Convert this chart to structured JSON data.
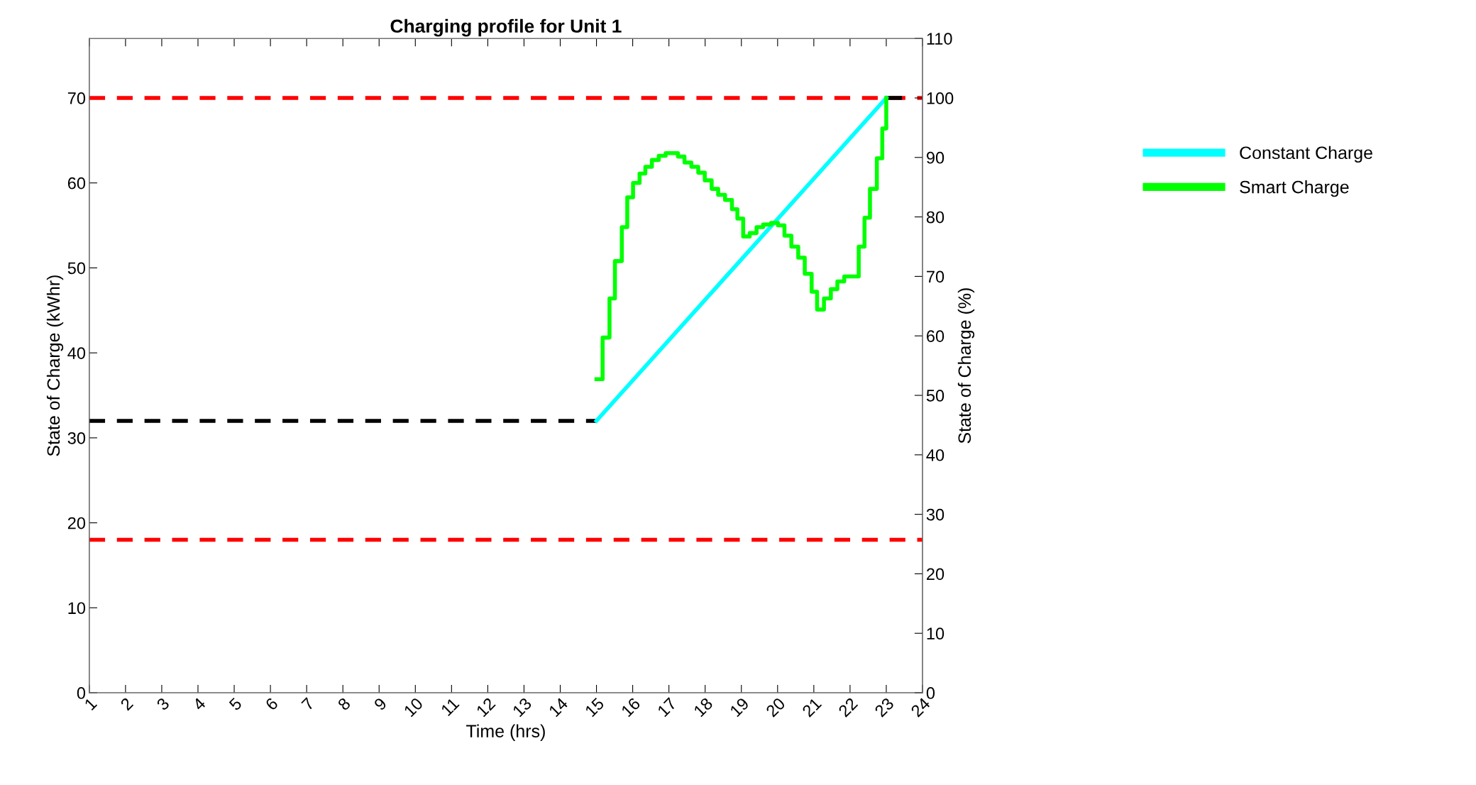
{
  "chart_data": {
    "type": "line",
    "title": "Charging profile for Unit 1",
    "xlabel": "Time (hrs)",
    "ylabel": "State of Charge (kWhr)",
    "y2label": "State of Charge (%)",
    "xlim": [
      1,
      24
    ],
    "xticks": [
      1,
      2,
      3,
      4,
      5,
      6,
      7,
      8,
      9,
      10,
      11,
      12,
      13,
      14,
      15,
      16,
      17,
      18,
      19,
      20,
      21,
      22,
      23,
      24
    ],
    "ylim": [
      0,
      77
    ],
    "yticks": [
      0,
      10,
      20,
      30,
      40,
      50,
      60,
      70
    ],
    "y2lim": [
      0,
      110
    ],
    "y2ticks": [
      0,
      10,
      20,
      30,
      40,
      50,
      60,
      70,
      80,
      90,
      100,
      110
    ],
    "grid": false,
    "legend": "top right",
    "line_style": "solid",
    "marker": "none",
    "ref_lines": [
      {
        "axis": "y",
        "value": 70,
        "color": "#ff0000",
        "line_style": "dashed"
      },
      {
        "axis": "y",
        "value": 18,
        "color": "#ff0000",
        "line_style": "dashed"
      }
    ],
    "series": [
      {
        "color": "#000000",
        "line_style": "dashed",
        "x": [
          1,
          15,
          19,
          23,
          23.5
        ],
        "values": [
          32,
          32,
          null,
          70,
          70
        ]
      },
      {
        "name": "Constant Charge",
        "color": "#00ffff",
        "x": [
          15,
          23
        ],
        "values": [
          32,
          70
        ]
      },
      {
        "name": "Smart Charge",
        "color": "#00ff00",
        "type": "step",
        "x": [
          15.0,
          15.17,
          15.36,
          15.51,
          15.7,
          15.85,
          16.01,
          16.19,
          16.35,
          16.53,
          16.72,
          16.91,
          17.25,
          17.43,
          17.62,
          17.81,
          17.99,
          18.18,
          18.36,
          18.55,
          18.74,
          18.89,
          19.05,
          19.23,
          19.42,
          19.6,
          19.82,
          20.01,
          20.19,
          20.38,
          20.57,
          20.75,
          20.94,
          21.09,
          21.28,
          21.47,
          21.65,
          21.84,
          22.24,
          22.4,
          22.55,
          22.74,
          22.89,
          23.0
        ],
        "values": [
          36.9,
          41.8,
          46.4,
          50.8,
          54.8,
          58.3,
          60.0,
          61.1,
          61.9,
          62.7,
          63.2,
          63.5,
          63.1,
          62.4,
          61.9,
          61.2,
          60.3,
          59.3,
          58.6,
          58.0,
          56.9,
          55.8,
          53.7,
          54.1,
          54.8,
          55.1,
          55.3,
          55.0,
          53.8,
          52.5,
          51.2,
          49.3,
          47.2,
          45.1,
          46.4,
          47.5,
          48.4,
          49.0,
          52.5,
          55.9,
          59.3,
          62.9,
          66.4,
          70
        ]
      }
    ]
  }
}
